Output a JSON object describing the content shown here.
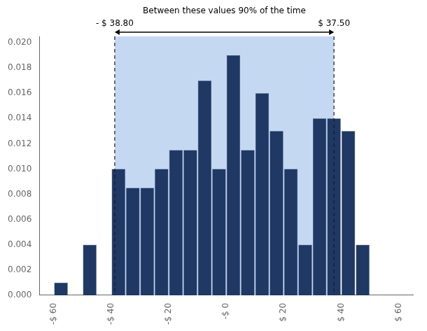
{
  "chart_data": {
    "type": "bar",
    "x": [
      -57.5,
      -52.5,
      -47.5,
      -42.5,
      -37.5,
      -32.5,
      -27.5,
      -22.5,
      -17.5,
      -12.5,
      -7.5,
      -2.5,
      2.5,
      7.5,
      12.5,
      17.5,
      22.5,
      27.5,
      32.5,
      37.5,
      42.5,
      47.5,
      52.5,
      57.5
    ],
    "values": [
      0.001,
      0.0,
      0.004,
      0.0,
      0.01,
      0.0085,
      0.0085,
      0.01,
      0.0115,
      0.0115,
      0.017,
      0.01,
      0.019,
      0.0115,
      0.016,
      0.013,
      0.01,
      0.004,
      0.014,
      0.014,
      0.013,
      0.004,
      0.0,
      0.0
    ],
    "color": "#1F3864",
    "xlim": [
      -65,
      65
    ],
    "xticks": [
      {
        "value": -60,
        "label": "-$ 60"
      },
      {
        "value": -40,
        "label": "-$ 40"
      },
      {
        "value": -20,
        "label": "-$ 20"
      },
      {
        "value": 0,
        "label": "-$ 0"
      },
      {
        "value": 20,
        "label": "$ 20"
      },
      {
        "value": 40,
        "label": "$ 40"
      },
      {
        "value": 60,
        "label": "$ 60"
      }
    ],
    "ylim": [
      0.0,
      0.0205
    ],
    "yticks": [
      {
        "value": 0.0,
        "label": "0.000"
      },
      {
        "value": 0.002,
        "label": "0.002"
      },
      {
        "value": 0.004,
        "label": "0.004"
      },
      {
        "value": 0.006,
        "label": "0.006"
      },
      {
        "value": 0.008,
        "label": "0.008"
      },
      {
        "value": 0.01,
        "label": "0.010"
      },
      {
        "value": 0.012,
        "label": "0.012"
      },
      {
        "value": 0.014,
        "label": "0.014"
      },
      {
        "value": 0.016,
        "label": "0.016"
      },
      {
        "value": 0.018,
        "label": "0.018"
      },
      {
        "value": 0.02,
        "label": "0.020"
      }
    ],
    "grid": false,
    "annotations": [
      {
        "type": "span",
        "x": [
          -38.8,
          37.5
        ],
        "color": "#C5D8F2"
      },
      {
        "type": "vline",
        "x": -38.8,
        "color": "#1a1a2e",
        "line_style": "dashed",
        "text": "- $ 38.80"
      },
      {
        "type": "vline",
        "x": 37.5,
        "color": "#1a1a2e",
        "line_style": "dashed",
        "text": "$ 37.50"
      },
      {
        "type": "arrow",
        "x": [
          -38.8,
          37.5
        ],
        "text": "Between these values 90% of the time"
      }
    ]
  }
}
